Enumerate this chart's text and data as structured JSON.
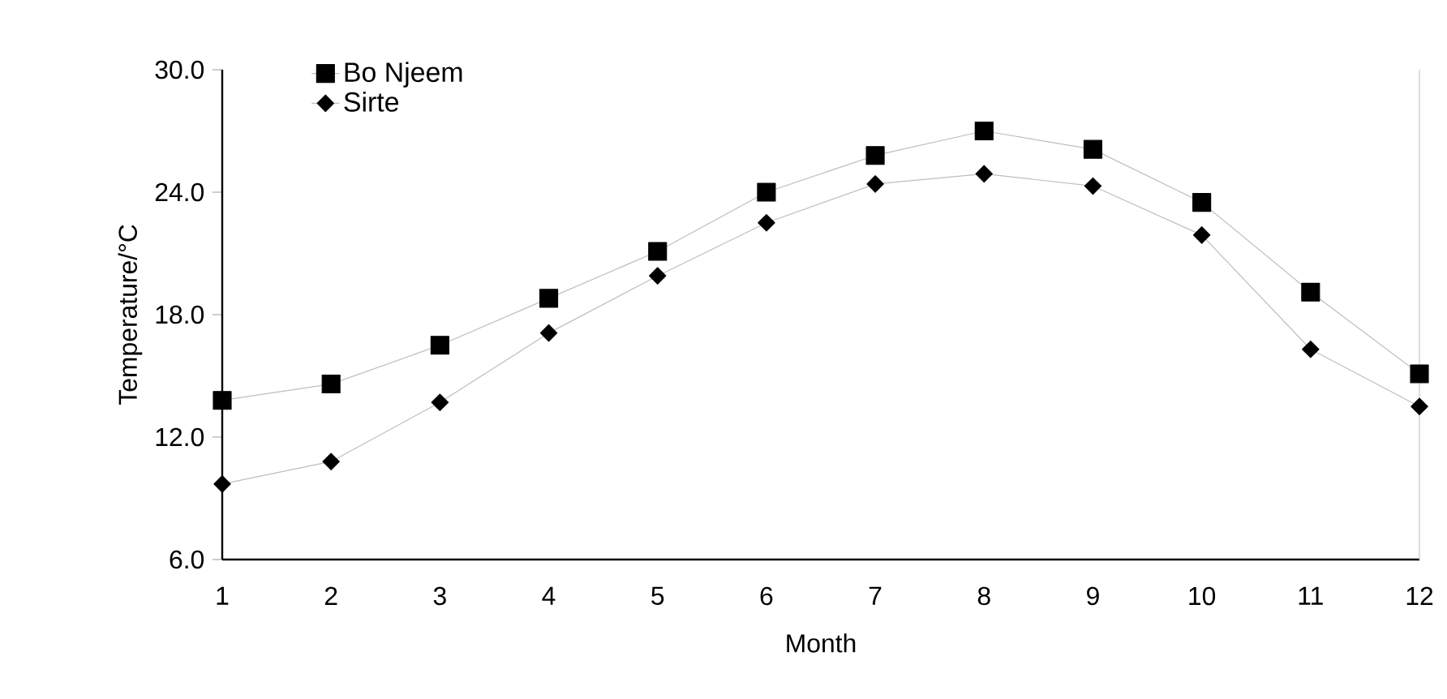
{
  "chart_data": {
    "type": "line",
    "xlabel": "Month",
    "ylabel": "Temperature/°C",
    "x": [
      1,
      2,
      3,
      4,
      5,
      6,
      7,
      8,
      9,
      10,
      11,
      12
    ],
    "series": [
      {
        "name": "Bo Njeem",
        "color": "#000000",
        "marker": "square",
        "values": [
          13.8,
          14.6,
          16.5,
          18.8,
          21.1,
          24.0,
          25.8,
          27.0,
          26.1,
          23.5,
          19.1,
          15.1
        ]
      },
      {
        "name": "Sirte",
        "color": "#000000",
        "marker": "diamond",
        "values": [
          9.7,
          10.8,
          13.7,
          17.1,
          19.9,
          22.5,
          24.4,
          24.9,
          24.3,
          21.9,
          16.3,
          13.5
        ]
      }
    ],
    "xlim": [
      1,
      12
    ],
    "xticks": [
      1,
      2,
      3,
      4,
      5,
      6,
      7,
      8,
      9,
      10,
      11,
      12
    ],
    "ylim": [
      6,
      30
    ],
    "yticks": [
      {
        "value": 6,
        "label": "6.0"
      },
      {
        "value": 12,
        "label": "12.0"
      },
      {
        "value": 18,
        "label": "18.0"
      },
      {
        "value": 24,
        "label": "24.0"
      },
      {
        "value": 30,
        "label": "30.0"
      }
    ],
    "legend": "top left",
    "line_style": "solid"
  }
}
